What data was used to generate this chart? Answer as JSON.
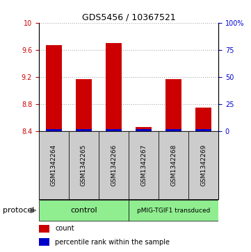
{
  "title": "GDS5456 / 10367521",
  "samples": [
    "GSM1342264",
    "GSM1342265",
    "GSM1342266",
    "GSM1342267",
    "GSM1342268",
    "GSM1342269"
  ],
  "count_values": [
    9.67,
    9.17,
    9.7,
    8.46,
    9.17,
    8.75
  ],
  "percentile_values": [
    1.5,
    1.5,
    1.5,
    0.8,
    1.5,
    0.8
  ],
  "ylim_left": [
    8.4,
    10.0
  ],
  "ylim_right": [
    0,
    100
  ],
  "yticks_left": [
    8.4,
    8.8,
    9.2,
    9.6,
    10.0
  ],
  "ytick_labels_left": [
    "8.4",
    "8.8",
    "9.2",
    "9.6",
    "10"
  ],
  "yticks_right": [
    0,
    25,
    50,
    75,
    100
  ],
  "ytick_labels_right": [
    "0",
    "25",
    "50",
    "75",
    "100%"
  ],
  "bar_color": "#cc0000",
  "percentile_color": "#0000cc",
  "grid_color": "#aaaaaa",
  "left_tick_color": "#cc0000",
  "right_tick_color": "#0000cc",
  "legend_count_label": "count",
  "legend_percentile_label": "percentile rank within the sample",
  "bar_width": 0.55,
  "background_color": "#ffffff",
  "plot_background": "#ffffff",
  "sample_box_color": "#cccccc",
  "protocol_label": "protocol",
  "control_label": "control",
  "pmig_label": "pMIG-TGIF1 transduced",
  "green_color": "#90ee90"
}
